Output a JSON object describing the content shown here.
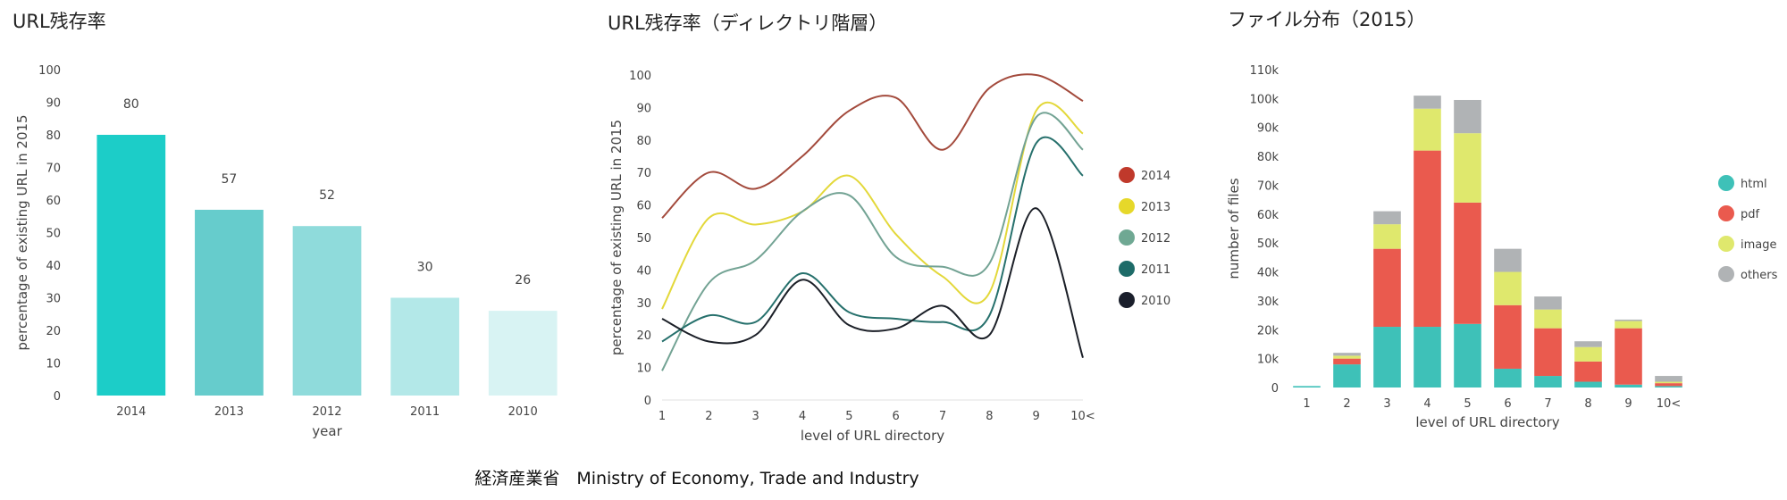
{
  "footer": "経済産業省　Ministry of Economy, Trade and Industry",
  "chart_data": [
    {
      "type": "bar",
      "title": "URL残存率",
      "xlabel": "year",
      "ylabel": "percentage of existing URL in 2015",
      "ylim": [
        0,
        100
      ],
      "yticks": [
        0,
        10,
        20,
        30,
        40,
        50,
        60,
        70,
        80,
        90,
        100
      ],
      "categories": [
        "2014",
        "2013",
        "2012",
        "2011",
        "2010"
      ],
      "values": [
        80,
        57,
        52,
        30,
        26
      ],
      "data_labels": [
        "80",
        "57",
        "52",
        "30",
        "26"
      ],
      "colors": [
        "#1ccdc8",
        "#66cccc",
        "#8fdbdb",
        "#b3e8e8",
        "#d8f3f3"
      ],
      "grid": false
    },
    {
      "type": "line",
      "title": "URL残存率（ディレクトリ階層）",
      "xlabel": "level of URL directory",
      "ylabel": "percentage of existing URL in 2015",
      "ylim": [
        0,
        100
      ],
      "yticks": [
        0,
        10,
        20,
        30,
        40,
        50,
        60,
        70,
        80,
        90,
        100
      ],
      "categories": [
        "1",
        "2",
        "3",
        "4",
        "5",
        "6",
        "7",
        "8",
        "9",
        "10<"
      ],
      "legend_position": "right",
      "series": [
        {
          "name": "2014",
          "color": "#c0392b",
          "line_color": "#a34a3c",
          "values": [
            56,
            70,
            65,
            75,
            89,
            93,
            77,
            96,
            100,
            92
          ]
        },
        {
          "name": "2013",
          "color": "#e6d82a",
          "line_color": "#e3d83a",
          "values": [
            28,
            56,
            54,
            58,
            69,
            51,
            38,
            33,
            89,
            82
          ]
        },
        {
          "name": "2012",
          "color": "#6fa893",
          "line_color": "#73a394",
          "values": [
            9,
            36,
            43,
            58,
            63,
            44,
            41,
            42,
            87,
            77
          ]
        },
        {
          "name": "2011",
          "color": "#1d6b68",
          "line_color": "#26706c",
          "values": [
            18,
            26,
            24,
            39,
            27,
            25,
            24,
            26,
            79,
            69
          ]
        },
        {
          "name": "2010",
          "color": "#1a1f2b",
          "line_color": "#1b1f27",
          "values": [
            25,
            18,
            20,
            37,
            23,
            22,
            29,
            20,
            59,
            13
          ]
        }
      ],
      "grid": false
    },
    {
      "type": "bar",
      "stacked": true,
      "title": "ファイル分布（2015）",
      "xlabel": "level of URL directory",
      "ylabel": "number of files",
      "ylim": [
        0,
        110000
      ],
      "yticks": [
        0,
        10000,
        20000,
        30000,
        40000,
        50000,
        60000,
        70000,
        80000,
        90000,
        100000,
        110000
      ],
      "ytick_labels": [
        "0",
        "10k",
        "20k",
        "30k",
        "40k",
        "50k",
        "60k",
        "70k",
        "80k",
        "90k",
        "100k",
        "110k"
      ],
      "categories": [
        "1",
        "2",
        "3",
        "4",
        "5",
        "6",
        "7",
        "8",
        "9",
        "10<"
      ],
      "legend_position": "right",
      "series": [
        {
          "name": "html",
          "color": "#3ec1b8",
          "values": [
            500,
            8000,
            21000,
            21000,
            22000,
            6500,
            4000,
            2000,
            1000,
            500
          ]
        },
        {
          "name": "pdf",
          "color": "#ea5a4e",
          "values": [
            0,
            2000,
            27000,
            61000,
            42000,
            22000,
            16500,
            7000,
            19500,
            1000
          ]
        },
        {
          "name": "image",
          "color": "#dfe86d",
          "values": [
            0,
            1000,
            8500,
            14500,
            24000,
            11500,
            6500,
            5000,
            2500,
            500
          ]
        },
        {
          "name": "others",
          "color": "#b0b3b5",
          "values": [
            0,
            1000,
            4500,
            4500,
            11500,
            8000,
            4500,
            2000,
            500,
            2000
          ]
        }
      ],
      "grid": false
    }
  ]
}
